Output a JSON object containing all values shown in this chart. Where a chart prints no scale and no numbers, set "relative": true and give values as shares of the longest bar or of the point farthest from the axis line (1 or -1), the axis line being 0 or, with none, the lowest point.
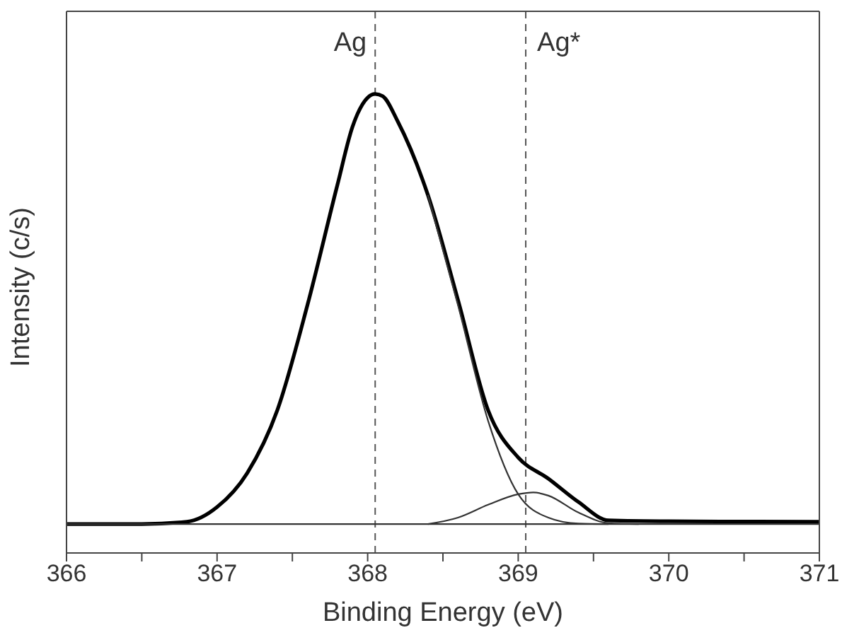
{
  "chart_data": {
    "type": "line",
    "relative": true,
    "xlabel": "Binding Energy (eV)",
    "ylabel": "Intensity (c/s)",
    "xlim": [
      366,
      371
    ],
    "xticks": [
      366,
      {
        "value": 366.5,
        "label": null
      },
      367,
      {
        "value": 367.5,
        "label": null
      },
      368,
      {
        "value": 368.5,
        "label": null
      },
      369,
      {
        "value": 369.5,
        "label": null
      },
      370,
      {
        "value": 370.5,
        "label": null
      },
      371
    ],
    "series": [
      {
        "color": "#000000",
        "x": [
          366,
          366.5,
          366.8,
          367,
          367.2,
          367.4,
          367.6,
          367.8,
          367.9,
          368,
          368.05,
          368.1,
          368.2,
          368.4,
          368.6,
          368.8,
          369,
          369.2,
          369.4,
          369.6,
          370,
          371
        ],
        "values": [
          0.063,
          0.063,
          0.068,
          0.1,
          0.174,
          0.311,
          0.54,
          0.803,
          0.929,
          0.992,
          1,
          0.995,
          0.94,
          0.78,
          0.551,
          0.311,
          0.208,
          0.162,
          0.111,
          0.071,
          0.069,
          0.068
        ]
      },
      {
        "color": "#333333",
        "x": [
          368.4,
          368.6,
          368.8,
          369,
          369.2,
          369.4,
          369.6
        ],
        "values": [
          0.78,
          0.54,
          0.288,
          0.128,
          0.077,
          0.064,
          0.063
        ]
      },
      {
        "color": "#333333",
        "x": [
          368.4,
          368.6,
          368.8,
          369,
          369.1,
          369.2,
          369.4,
          369.6,
          369.8
        ],
        "values": [
          0.063,
          0.077,
          0.105,
          0.128,
          0.132,
          0.125,
          0.088,
          0.065,
          0.063
        ]
      },
      {
        "color": "#333333",
        "x": [
          366,
          371
        ],
        "values": [
          0.063,
          0.063
        ]
      }
    ],
    "ref_lines": [
      {
        "axis": "x",
        "value": 368.05,
        "label": "Ag",
        "color": "#555555",
        "line_style": "dashed"
      },
      {
        "axis": "x",
        "value": 369.05,
        "label": "Ag*",
        "color": "#555555",
        "line_style": "dashed"
      }
    ],
    "grid": false,
    "legend": false,
    "marker": "none",
    "line_style": "solid"
  }
}
